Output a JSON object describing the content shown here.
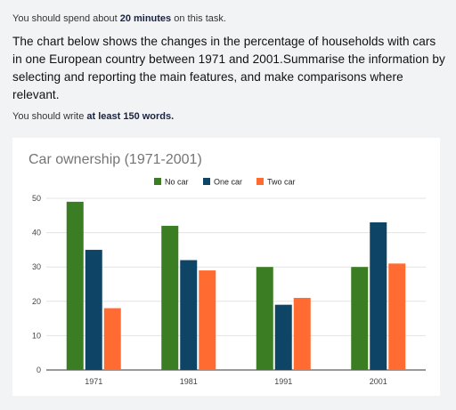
{
  "task": {
    "time_prefix": "You should spend about ",
    "time_bold": "20 minutes",
    "time_suffix": " on this task.",
    "prompt": "The chart below shows the changes in the percentage of households with cars in one European country between 1971 and 2001.Summarise the information by selecting and reporting the main features, and make comparisons where relevant.",
    "words_prefix": "You should write ",
    "words_bold": "at least 150 words."
  },
  "chart_data": {
    "type": "bar",
    "title": "Car ownership (1971-2001)",
    "categories": [
      "1971",
      "1981",
      "1991",
      "2001"
    ],
    "series": [
      {
        "name": "No car",
        "values": [
          49,
          42,
          30,
          30
        ],
        "color": "#3a7d22"
      },
      {
        "name": "One car",
        "values": [
          35,
          32,
          19,
          43
        ],
        "color": "#0e4466"
      },
      {
        "name": "Two car",
        "values": [
          18,
          29,
          21,
          31
        ],
        "color": "#ff6b30"
      }
    ],
    "ylim": [
      0,
      50
    ],
    "yticks": [
      0,
      10,
      20,
      30,
      40,
      50
    ],
    "grid": true,
    "legend_position": "top"
  }
}
